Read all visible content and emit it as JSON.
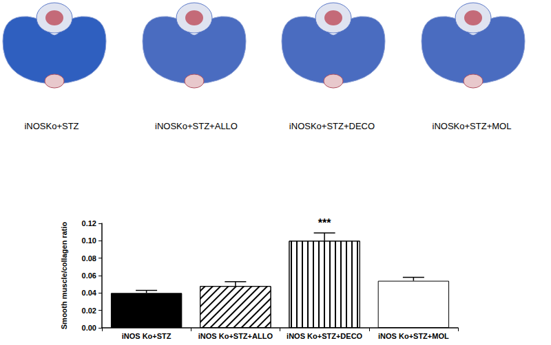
{
  "images": {
    "captions": [
      "iNOSKo+STZ",
      "iNOSKo+STZ+ALLO",
      "iNOSKo+STZ+DECO",
      "iNOSKo+STZ+MOL"
    ]
  },
  "chart_data": {
    "type": "bar",
    "y_label": "Smooth muscle/collagen ratio",
    "categories": [
      "iNOS Ko+STZ",
      "iNOS Ko+STZ+ALLO",
      "iNOS Ko+STZ+DECO",
      "iNOS Ko+STZ+MOL"
    ],
    "values": [
      0.04,
      0.048,
      0.1,
      0.054
    ],
    "errors": [
      0.003,
      0.005,
      0.009,
      0.004
    ],
    "colors": [
      "#000000",
      "#ffffff",
      "#ffffff",
      "#ffffff"
    ],
    "annotations": [
      {
        "category": "iNOS Ko+STZ+DECO",
        "text": "***"
      }
    ],
    "ylim": [
      0,
      0.12
    ],
    "yticks": [
      {
        "value": 0,
        "label": "0.00"
      },
      {
        "value": 0.02,
        "label": "0.02"
      },
      {
        "value": 0.04,
        "label": "0.04"
      },
      {
        "value": 0.06,
        "label": "0.06"
      },
      {
        "value": 0.08,
        "label": "0.08"
      },
      {
        "value": 0.1,
        "label": "0.10"
      },
      {
        "value": 0.12,
        "label": "0.12"
      }
    ],
    "grid": false
  }
}
